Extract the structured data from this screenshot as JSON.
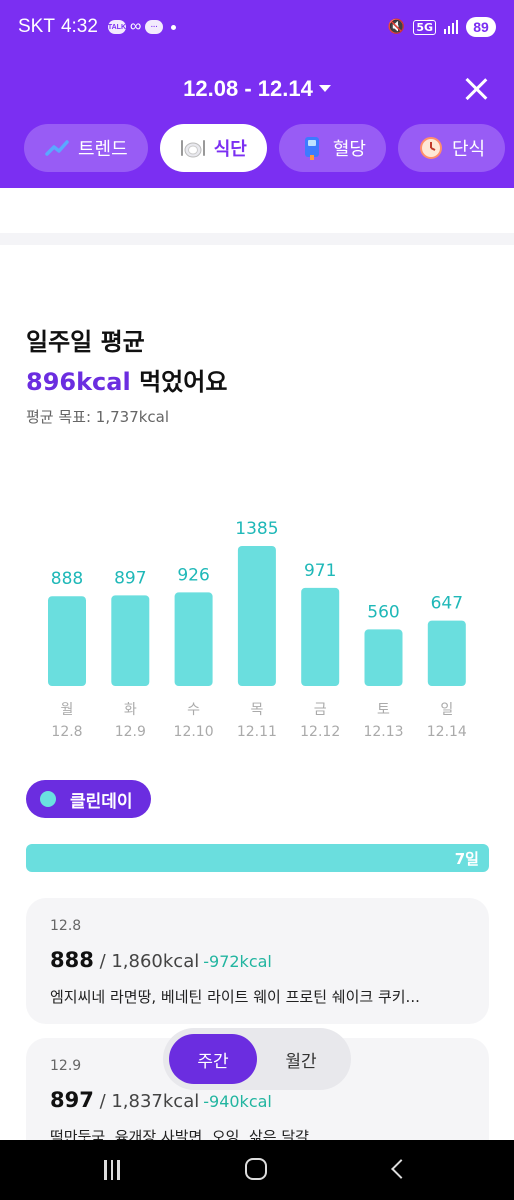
{
  "status_bar": {
    "carrier": "SKT",
    "time": "4:32",
    "network": "5G",
    "battery": "89"
  },
  "header": {
    "date_range": "12.08 - 12.14",
    "tabs": [
      {
        "label": "트렌드",
        "icon": "trend-chart-icon"
      },
      {
        "label": "식단",
        "icon": "plate-icon",
        "active": true
      },
      {
        "label": "혈당",
        "icon": "glucose-meter-icon"
      },
      {
        "label": "단식",
        "icon": "clock-icon"
      }
    ]
  },
  "summary": {
    "title": "일주일 평균",
    "avg_kcal": "896kcal",
    "avg_suffix": " 먹었어요",
    "goal": "평균 목표: 1,737kcal"
  },
  "chart_data": {
    "type": "bar",
    "categories": [
      "월",
      "화",
      "수",
      "목",
      "금",
      "토",
      "일"
    ],
    "dates": [
      "12.8",
      "12.9",
      "12.10",
      "12.11",
      "12.12",
      "12.13",
      "12.14"
    ],
    "values": [
      888,
      897,
      926,
      1385,
      971,
      560,
      647
    ],
    "bar_color": "#6adede",
    "label_color": "#1fb8b8"
  },
  "clean_day": {
    "label": "클린데이",
    "count": "7일"
  },
  "cards": [
    {
      "date": "12.8",
      "kcal": "888",
      "target": " / 1,860kcal",
      "diff": "-972kcal",
      "foods": "엠지씨네 라면땅, 베네틴 라이트 웨이 프로틴 쉐이크 쿠키..."
    },
    {
      "date": "12.9",
      "kcal": "897",
      "target": " / 1,837kcal",
      "diff": "-940kcal",
      "foods": "떡만둣국, 육개장 사발면, 오잉, 삶은 달걀"
    }
  ],
  "toggle": {
    "weekly": "주간",
    "monthly": "월간"
  },
  "colors": {
    "brand": "#7b2ff2",
    "accent": "#6b2de0",
    "teal": "#6adede"
  }
}
